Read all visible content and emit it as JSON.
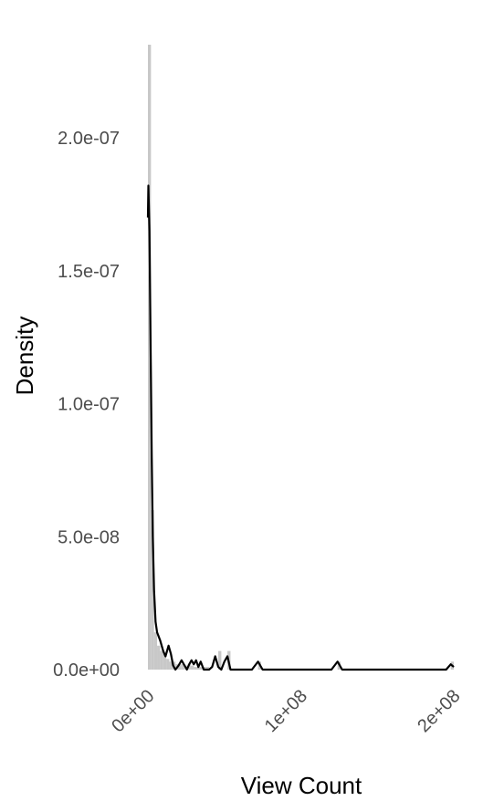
{
  "chart_data": {
    "type": "area",
    "title": "",
    "xlabel": "View Count",
    "ylabel": "Density",
    "xlim": [
      0,
      200000000
    ],
    "ylim": [
      0,
      2.35e-07
    ],
    "x_ticks": [
      {
        "value": 0,
        "label": "0e+00"
      },
      {
        "value": 100000000,
        "label": "1e+08"
      },
      {
        "value": 200000000,
        "label": "2e+08"
      }
    ],
    "y_ticks": [
      {
        "value": 0,
        "label": "0.0e+00"
      },
      {
        "value": 5e-08,
        "label": "5.0e-08"
      },
      {
        "value": 1e-07,
        "label": "1.0e-07"
      },
      {
        "value": 1.5e-07,
        "label": "1.5e-07"
      },
      {
        "value": 2e-07,
        "label": "2.0e-07"
      }
    ],
    "grid": false,
    "legend": "none",
    "colors": {
      "histogram": "#c8c8c8",
      "density_line": "#000000",
      "tick_text": "#4d4d4d",
      "axis_title": "#000000"
    },
    "series": [
      {
        "kind": "histogram",
        "bin_width": 2000000,
        "bins": [
          {
            "x": 0,
            "y": 2.35e-07
          },
          {
            "x": 2000000,
            "y": 6e-08
          },
          {
            "x": 4000000,
            "y": 1.4e-08
          },
          {
            "x": 6000000,
            "y": 9e-09
          },
          {
            "x": 8000000,
            "y": 7e-09
          },
          {
            "x": 10000000,
            "y": 6e-09
          },
          {
            "x": 12000000,
            "y": 4e-09
          },
          {
            "x": 14000000,
            "y": 3e-09
          },
          {
            "x": 16000000,
            "y": 3e-09
          },
          {
            "x": 18000000,
            "y": 2e-09
          },
          {
            "x": 20000000,
            "y": 2e-09
          },
          {
            "x": 22000000,
            "y": 2e-09
          },
          {
            "x": 24000000,
            "y": 1.5e-09
          },
          {
            "x": 26000000,
            "y": 2e-09
          },
          {
            "x": 28000000,
            "y": 1.5e-09
          },
          {
            "x": 30000000,
            "y": 1e-09
          },
          {
            "x": 32000000,
            "y": 1e-09
          },
          {
            "x": 34000000,
            "y": 1e-09
          },
          {
            "x": 36000000,
            "y": 1e-09
          },
          {
            "x": 38000000,
            "y": 1e-09
          },
          {
            "x": 46000000,
            "y": 7e-09
          },
          {
            "x": 52000000,
            "y": 7e-09
          },
          {
            "x": 72000000,
            "y": 3e-09
          },
          {
            "x": 124000000,
            "y": 3e-09
          },
          {
            "x": 198000000,
            "y": 3e-09
          }
        ]
      },
      {
        "kind": "density",
        "points": [
          [
            0,
            1.7e-07
          ],
          [
            300000,
            1.82e-07
          ],
          [
            1000000,
            1.65e-07
          ],
          [
            1800000,
            1.2e-07
          ],
          [
            2500000,
            8e-08
          ],
          [
            3200000,
            5e-08
          ],
          [
            4000000,
            3e-08
          ],
          [
            5000000,
            1.8e-08
          ],
          [
            6000000,
            1.4e-08
          ],
          [
            8000000,
            1.1e-08
          ],
          [
            10000000,
            7e-09
          ],
          [
            11500000,
            5e-09
          ],
          [
            13500000,
            9e-09
          ],
          [
            15000000,
            6e-09
          ],
          [
            16500000,
            1.5e-09
          ],
          [
            18000000,
            0
          ],
          [
            20000000,
            1.5e-09
          ],
          [
            22000000,
            3.5e-09
          ],
          [
            24000000,
            1.5e-09
          ],
          [
            25500000,
            0
          ],
          [
            27000000,
            2e-09
          ],
          [
            28500000,
            3.5e-09
          ],
          [
            30000000,
            2e-09
          ],
          [
            31500000,
            3.5e-09
          ],
          [
            33000000,
            1e-09
          ],
          [
            34500000,
            3e-09
          ],
          [
            36500000,
            0
          ],
          [
            40000000,
            0
          ],
          [
            42000000,
            1e-09
          ],
          [
            44000000,
            5e-09
          ],
          [
            46000000,
            1e-09
          ],
          [
            48000000,
            0
          ],
          [
            50000000,
            3e-09
          ],
          [
            52000000,
            5e-09
          ],
          [
            54000000,
            0
          ],
          [
            60000000,
            0
          ],
          [
            68000000,
            0
          ],
          [
            72000000,
            3e-09
          ],
          [
            75000000,
            0
          ],
          [
            120000000,
            0
          ],
          [
            124000000,
            3e-09
          ],
          [
            127000000,
            0
          ],
          [
            195000000,
            0
          ],
          [
            198000000,
            2e-09
          ],
          [
            200000000,
            1e-09
          ]
        ]
      }
    ]
  }
}
